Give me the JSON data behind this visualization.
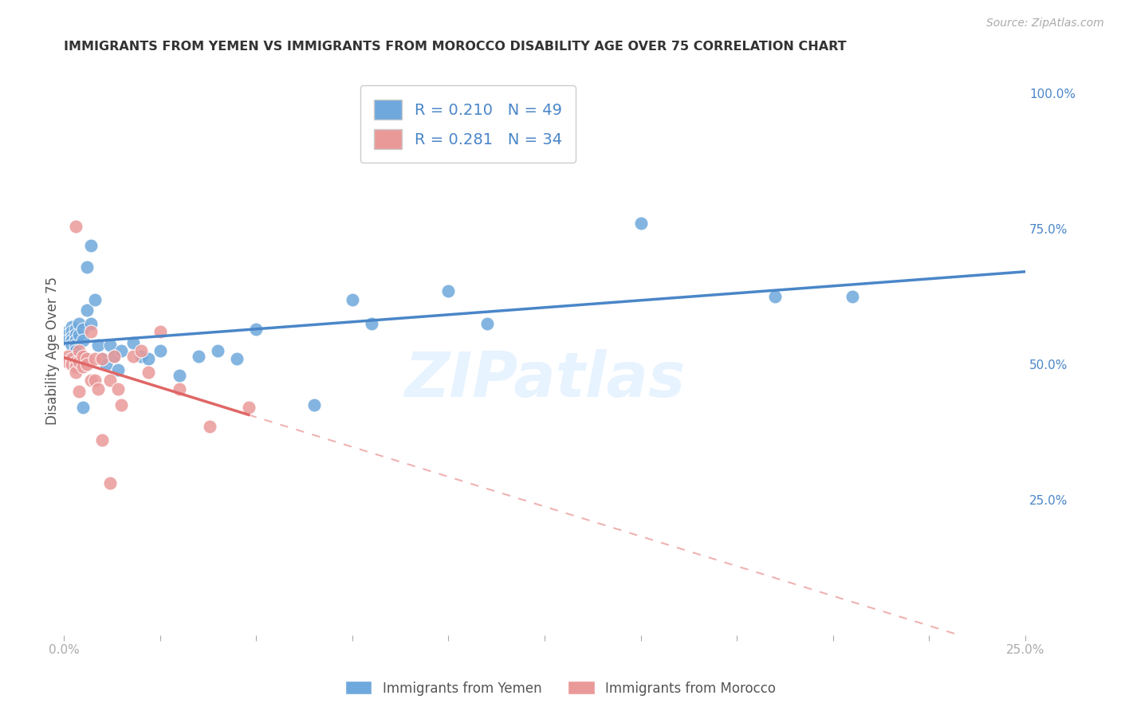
{
  "title": "IMMIGRANTS FROM YEMEN VS IMMIGRANTS FROM MOROCCO DISABILITY AGE OVER 75 CORRELATION CHART",
  "source": "Source: ZipAtlas.com",
  "ylabel": "Disability Age Over 75",
  "right_yticks": [
    "100.0%",
    "75.0%",
    "50.0%",
    "25.0%"
  ],
  "right_ytick_vals": [
    1.0,
    0.75,
    0.5,
    0.25
  ],
  "xlim": [
    0.0,
    0.25
  ],
  "ylim": [
    0.0,
    1.05
  ],
  "legend_yemen_R": "0.210",
  "legend_yemen_N": "49",
  "legend_morocco_R": "0.281",
  "legend_morocco_N": "34",
  "color_yemen": "#6fa8dc",
  "color_morocco": "#ea9999",
  "color_line_yemen": "#4a86c8",
  "color_line_morocco": "#e06666",
  "background_color": "#ffffff",
  "grid_color": "#dddddd",
  "yemen_x": [
    0.001,
    0.001,
    0.001,
    0.002,
    0.002,
    0.002,
    0.002,
    0.002,
    0.003,
    0.003,
    0.003,
    0.003,
    0.003,
    0.003,
    0.004,
    0.004,
    0.004,
    0.005,
    0.005,
    0.005,
    0.006,
    0.006,
    0.007,
    0.007,
    0.008,
    0.009,
    0.01,
    0.011,
    0.012,
    0.013,
    0.014,
    0.015,
    0.018,
    0.02,
    0.022,
    0.025,
    0.03,
    0.035,
    0.04,
    0.045,
    0.05,
    0.065,
    0.075,
    0.08,
    0.1,
    0.11,
    0.15,
    0.185,
    0.205
  ],
  "yemen_y": [
    0.56,
    0.555,
    0.545,
    0.57,
    0.56,
    0.55,
    0.545,
    0.535,
    0.565,
    0.555,
    0.545,
    0.535,
    0.525,
    0.515,
    0.575,
    0.555,
    0.505,
    0.565,
    0.545,
    0.42,
    0.68,
    0.6,
    0.72,
    0.575,
    0.62,
    0.535,
    0.51,
    0.5,
    0.535,
    0.515,
    0.49,
    0.525,
    0.54,
    0.515,
    0.51,
    0.525,
    0.48,
    0.515,
    0.525,
    0.51,
    0.565,
    0.425,
    0.62,
    0.575,
    0.635,
    0.575,
    0.76,
    0.625,
    0.625
  ],
  "morocco_x": [
    0.001,
    0.001,
    0.002,
    0.002,
    0.003,
    0.003,
    0.003,
    0.003,
    0.004,
    0.004,
    0.004,
    0.005,
    0.005,
    0.006,
    0.006,
    0.007,
    0.007,
    0.008,
    0.008,
    0.009,
    0.01,
    0.01,
    0.012,
    0.012,
    0.013,
    0.014,
    0.015,
    0.018,
    0.02,
    0.022,
    0.025,
    0.03,
    0.038,
    0.048
  ],
  "morocco_y": [
    0.515,
    0.505,
    0.51,
    0.5,
    0.505,
    0.495,
    0.485,
    0.755,
    0.525,
    0.505,
    0.45,
    0.515,
    0.495,
    0.51,
    0.5,
    0.56,
    0.47,
    0.51,
    0.47,
    0.455,
    0.51,
    0.36,
    0.47,
    0.28,
    0.515,
    0.455,
    0.425,
    0.515,
    0.525,
    0.485,
    0.56,
    0.455,
    0.385,
    0.42
  ]
}
